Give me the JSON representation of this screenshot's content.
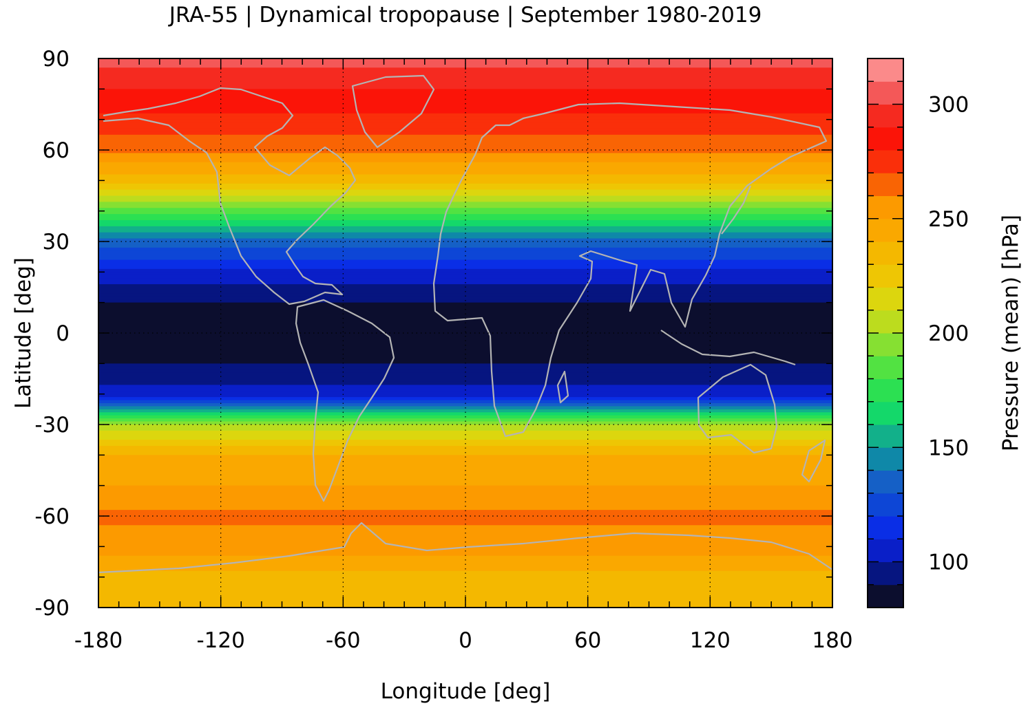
{
  "chart_data": {
    "type": "heatmap",
    "title": "JRA-55 | Dynamical tropopause | September 1980-2019",
    "xlabel": "Longitude [deg]",
    "ylabel": "Latitude [deg]",
    "colorbar_label": "Pressure (mean) [hPa]",
    "xlim": [
      -180,
      180
    ],
    "ylim": [
      -90,
      90
    ],
    "xticks": [
      -180,
      -120,
      -60,
      0,
      60,
      120,
      180
    ],
    "yticks": [
      90,
      60,
      30,
      0,
      -30,
      -60,
      -90
    ],
    "xtick_labels": [
      "-180",
      "-120",
      "-60",
      "0",
      "60",
      "120",
      "180"
    ],
    "ytick_labels": [
      "90",
      "60",
      "30",
      "0",
      "-30",
      "-60",
      "-90"
    ],
    "grid": true,
    "colorbar": {
      "range": [
        80,
        320
      ],
      "ticks": [
        100,
        150,
        200,
        250,
        300
      ],
      "tick_labels": [
        "100",
        "150",
        "200",
        "250",
        "300"
      ],
      "levels": [
        80,
        90,
        100,
        110,
        120,
        130,
        140,
        150,
        160,
        170,
        180,
        190,
        200,
        210,
        220,
        230,
        240,
        250,
        260,
        270,
        280,
        290,
        300,
        310,
        320
      ],
      "colors": [
        "#0c0e2e",
        "#061580",
        "#0a1fc8",
        "#0a2ee6",
        "#0d46d6",
        "#1560c6",
        "#0f88a8",
        "#12b08a",
        "#14d86a",
        "#2ce052",
        "#52e242",
        "#86e032",
        "#bcdc1e",
        "#dcd60e",
        "#eec604",
        "#f4b800",
        "#faa800",
        "#fc9a00",
        "#f96404",
        "#fa2f0a",
        "#fb1408",
        "#f52a20",
        "#f45858",
        "#fb8a8a",
        "#ffcccc"
      ]
    },
    "zonal_profile": {
      "latitude": [
        90,
        80,
        70,
        60,
        50,
        40,
        30,
        20,
        10,
        0,
        -10,
        -20,
        -30,
        -40,
        -50,
        -60,
        -70,
        -80,
        -90
      ],
      "pressure_hPa": [
        305,
        290,
        278,
        262,
        235,
        185,
        135,
        108,
        90,
        88,
        90,
        105,
        200,
        240,
        250,
        262,
        255,
        236,
        232
      ]
    }
  }
}
